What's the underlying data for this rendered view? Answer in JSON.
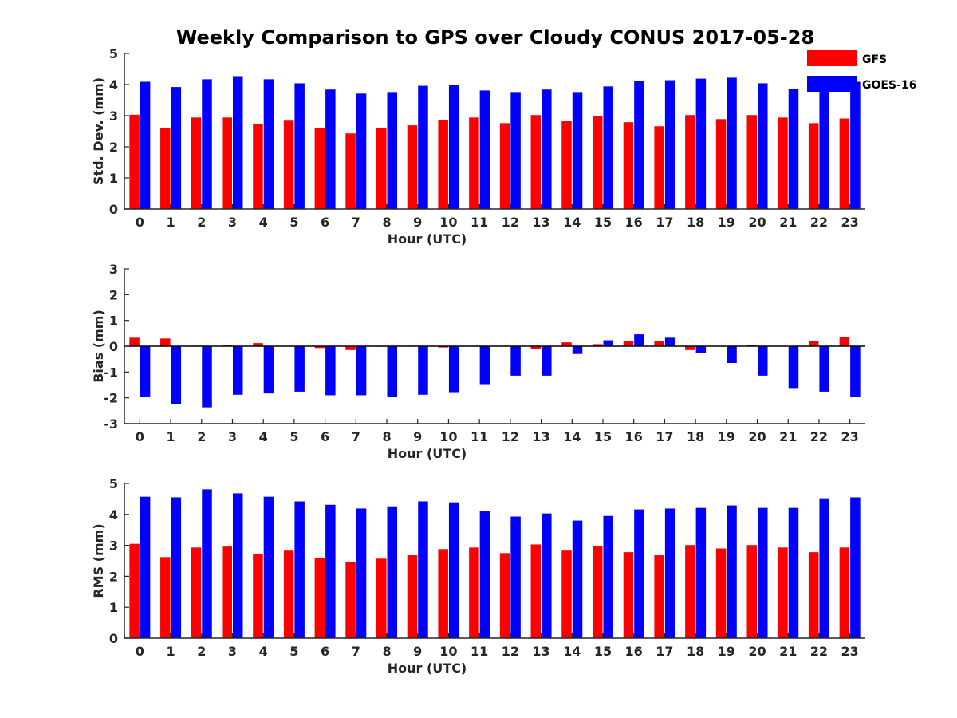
{
  "title": "Weekly Comparison to GPS over Cloudy CONUS 2017-05-28",
  "colors": {
    "gfs": "#ff0000",
    "goes": "#0000ff",
    "axis": "#262626"
  },
  "legend": {
    "placement": "top-right",
    "items": [
      "GFS",
      "GOES-16"
    ]
  },
  "chart_data": [
    {
      "type": "bar",
      "xlabel": "Hour (UTC)",
      "ylabel": "Std. Dev. (mm)",
      "ylim": [
        0,
        5
      ],
      "yticks": [
        0,
        1,
        2,
        3,
        4,
        5
      ],
      "grid": false,
      "categories": [
        "0",
        "1",
        "2",
        "3",
        "4",
        "5",
        "6",
        "7",
        "8",
        "9",
        "10",
        "11",
        "12",
        "13",
        "14",
        "15",
        "16",
        "17",
        "18",
        "19",
        "20",
        "21",
        "22",
        "23"
      ],
      "series": [
        {
          "name": "GFS",
          "values": [
            3.03,
            2.61,
            2.94,
            2.94,
            2.74,
            2.84,
            2.61,
            2.43,
            2.59,
            2.69,
            2.86,
            2.94,
            2.76,
            3.02,
            2.82,
            2.99,
            2.79,
            2.66,
            3.02,
            2.89,
            3.02,
            2.94,
            2.76,
            2.91
          ]
        },
        {
          "name": "GOES-16",
          "values": [
            4.09,
            3.92,
            4.17,
            4.27,
            4.17,
            4.04,
            3.84,
            3.71,
            3.76,
            3.96,
            4.0,
            3.81,
            3.76,
            3.84,
            3.76,
            3.94,
            4.12,
            4.14,
            4.19,
            4.22,
            4.04,
            3.86,
            4.14,
            4.09
          ]
        }
      ]
    },
    {
      "type": "bar",
      "xlabel": "Hour (UTC)",
      "ylabel": "Bias (mm)",
      "ylim": [
        -3,
        3
      ],
      "yticks": [
        -3,
        -2,
        -1,
        0,
        1,
        2,
        3
      ],
      "grid": false,
      "zero_line": true,
      "categories": [
        "0",
        "1",
        "2",
        "3",
        "4",
        "5",
        "6",
        "7",
        "8",
        "9",
        "10",
        "11",
        "12",
        "13",
        "14",
        "15",
        "16",
        "17",
        "18",
        "19",
        "20",
        "21",
        "22",
        "23"
      ],
      "series": [
        {
          "name": "GFS",
          "values": [
            0.33,
            0.3,
            0.02,
            0.05,
            0.12,
            0.0,
            -0.07,
            -0.15,
            0.0,
            0.02,
            -0.05,
            -0.02,
            0.02,
            -0.12,
            0.15,
            0.08,
            0.2,
            0.2,
            -0.15,
            0.0,
            0.05,
            0.0,
            0.2,
            0.36
          ]
        },
        {
          "name": "GOES-16",
          "values": [
            -1.98,
            -2.24,
            -2.37,
            -1.88,
            -1.83,
            -1.76,
            -1.9,
            -1.9,
            -1.98,
            -1.88,
            -1.78,
            -1.47,
            -1.14,
            -1.14,
            -0.3,
            0.23,
            0.46,
            0.33,
            -0.27,
            -0.65,
            -1.14,
            -1.62,
            -1.76,
            -1.98
          ]
        }
      ]
    },
    {
      "type": "bar",
      "xlabel": "Hour (UTC)",
      "ylabel": "RMS (mm)",
      "ylim": [
        0,
        5
      ],
      "yticks": [
        0,
        1,
        2,
        3,
        4,
        5
      ],
      "grid": false,
      "categories": [
        "0",
        "1",
        "2",
        "3",
        "4",
        "5",
        "6",
        "7",
        "8",
        "9",
        "10",
        "11",
        "12",
        "13",
        "14",
        "15",
        "16",
        "17",
        "18",
        "19",
        "20",
        "21",
        "22",
        "23"
      ],
      "series": [
        {
          "name": "GFS",
          "values": [
            3.05,
            2.62,
            2.93,
            2.96,
            2.73,
            2.83,
            2.6,
            2.45,
            2.57,
            2.68,
            2.88,
            2.93,
            2.75,
            3.03,
            2.83,
            2.98,
            2.78,
            2.68,
            3.01,
            2.9,
            3.01,
            2.93,
            2.78,
            2.93
          ]
        },
        {
          "name": "GOES-16",
          "values": [
            4.57,
            4.55,
            4.81,
            4.68,
            4.57,
            4.42,
            4.31,
            4.19,
            4.26,
            4.42,
            4.39,
            4.11,
            3.93,
            4.03,
            3.8,
            3.95,
            4.16,
            4.19,
            4.21,
            4.29,
            4.21,
            4.21,
            4.52,
            4.55
          ]
        }
      ]
    }
  ]
}
